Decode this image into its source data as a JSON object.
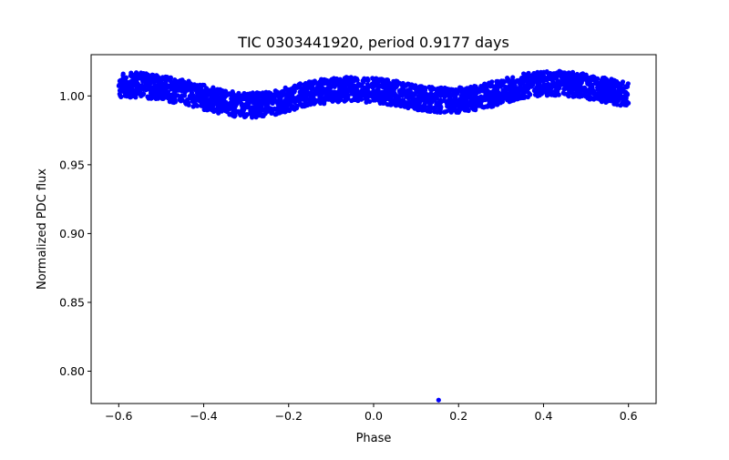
{
  "chart_data": {
    "type": "scatter",
    "title": "TIC 0303441920, period 0.9177 days",
    "xlabel": "Phase",
    "ylabel": "Normalized PDC flux",
    "xlim": [
      -0.665,
      0.665
    ],
    "ylim": [
      0.7765,
      1.03
    ],
    "xticks": [
      -0.6,
      -0.4,
      -0.2,
      0.0,
      0.2,
      0.4,
      0.6
    ],
    "xtick_labels": [
      "−0.6",
      "−0.4",
      "−0.2",
      "0.0",
      "0.2",
      "0.4",
      "0.6"
    ],
    "yticks": [
      0.8,
      0.85,
      0.9,
      0.95,
      1.0
    ],
    "ytick_labels": [
      "0.80",
      "0.85",
      "0.90",
      "0.95",
      "1.00"
    ],
    "grid": false,
    "legend": "none",
    "marker_color": "#0000ff",
    "band": {
      "description": "dense band of points between phase -0.6 and 0.6",
      "phase_range": [
        -0.6,
        0.6
      ],
      "x": [
        -0.6,
        -0.55,
        -0.5,
        -0.45,
        -0.4,
        -0.35,
        -0.3,
        -0.25,
        -0.2,
        -0.15,
        -0.1,
        -0.05,
        0.0,
        0.05,
        0.1,
        0.15,
        0.2,
        0.25,
        0.3,
        0.35,
        0.4,
        0.45,
        0.5,
        0.55,
        0.6
      ],
      "center": [
        1.008,
        1.008,
        1.006,
        1.003,
        0.999,
        0.995,
        0.993,
        0.994,
        0.998,
        1.002,
        1.004,
        1.005,
        1.004,
        1.002,
        0.999,
        0.997,
        0.997,
        0.999,
        1.003,
        1.007,
        1.009,
        1.009,
        1.007,
        1.004,
        1.001
      ],
      "half_width": 0.009
    },
    "outliers": [
      {
        "x": 0.153,
        "y": 0.779
      }
    ]
  }
}
